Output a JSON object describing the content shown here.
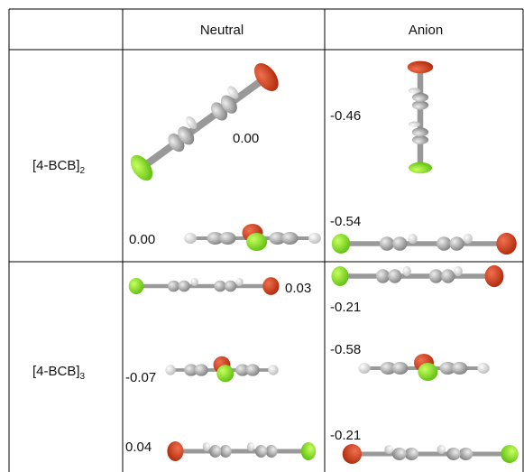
{
  "table": {
    "columns": [
      "Neutral",
      "Anion"
    ],
    "rows": [
      {
        "label": "[4-BCB]",
        "subscript": "2",
        "neutral": [
          "0.00",
          "0.00"
        ],
        "anion": [
          "-0.46",
          "-0.54"
        ]
      },
      {
        "label": "[4-BCB]",
        "subscript": "3",
        "neutral": [
          "0.03",
          "-0.07",
          "0.04"
        ],
        "anion": [
          "-0.21",
          "-0.58",
          "-0.21"
        ]
      }
    ]
  }
}
